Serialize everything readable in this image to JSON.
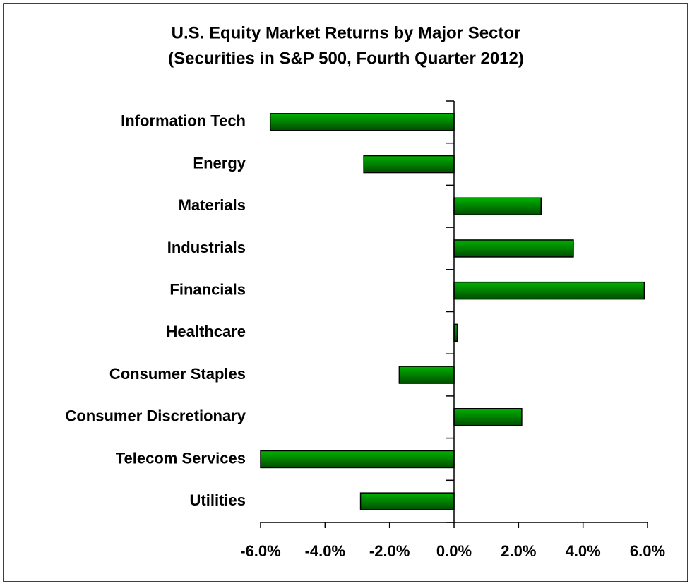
{
  "chart_data": {
    "type": "bar",
    "orientation": "horizontal",
    "title": "U.S. Equity Market Returns by Major Sector",
    "subtitle": "(Securities in S&P 500, Fourth Quarter 2012)",
    "categories": [
      "Information Tech",
      "Energy",
      "Materials",
      "Industrials",
      "Financials",
      "Healthcare",
      "Consumer Staples",
      "Consumer Discretionary",
      "Telecom Services",
      "Utilities"
    ],
    "values": [
      -5.7,
      -2.8,
      2.7,
      3.7,
      5.9,
      0.1,
      -1.7,
      2.1,
      -6.0,
      -2.9
    ],
    "color": "#008000",
    "xlim": [
      -6,
      6
    ],
    "xticks": [
      {
        "value": -6,
        "label": "-6.0%"
      },
      {
        "value": -4,
        "label": "-4.0%"
      },
      {
        "value": -2,
        "label": "-2.0%"
      },
      {
        "value": 0,
        "label": "0.0%"
      },
      {
        "value": 2,
        "label": "2.0%"
      },
      {
        "value": 4,
        "label": "4.0%"
      },
      {
        "value": 6,
        "label": "6.0%"
      }
    ],
    "grid": false
  }
}
